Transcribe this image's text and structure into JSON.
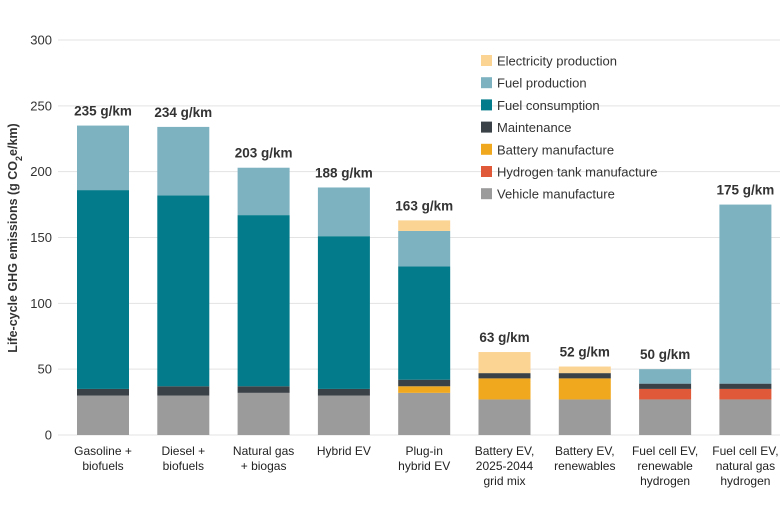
{
  "chart_data": {
    "type": "bar",
    "stacked": true,
    "ylabel_parts": [
      "Life-cycle GHG emissions (g CO",
      "2",
      "e/km)"
    ],
    "ylim": [
      0,
      300
    ],
    "yticks": [
      0,
      50,
      100,
      150,
      200,
      250,
      300
    ],
    "categories": [
      [
        "Gasoline +",
        "biofuels"
      ],
      [
        "Diesel +",
        "biofuels"
      ],
      [
        "Natural gas",
        "+ biogas"
      ],
      [
        "Hybrid EV"
      ],
      [
        "Plug-in",
        "hybrid EV"
      ],
      [
        "Battery EV,",
        "2025-2044",
        "grid mix"
      ],
      [
        "Battery EV,",
        "renewables"
      ],
      [
        "Fuel cell EV,",
        "renewable",
        "hydrogen"
      ],
      [
        "Fuel cell EV,",
        "natural gas",
        "hydrogen"
      ]
    ],
    "totals": [
      "235 g/km",
      "234 g/km",
      "203 g/km",
      "188 g/km",
      "163 g/km",
      "63 g/km",
      "52 g/km",
      "50 g/km",
      "175 g/km"
    ],
    "series": [
      {
        "name": "Vehicle manufacture",
        "color": "#9b9b9b",
        "values": [
          30,
          30,
          32,
          30,
          32,
          27,
          27,
          27,
          27
        ]
      },
      {
        "name": "Hydrogen tank manufacture",
        "color": "#e05a3a",
        "values": [
          0,
          0,
          0,
          0,
          0,
          0,
          0,
          8,
          8
        ]
      },
      {
        "name": "Battery manufacture",
        "color": "#f0a81e",
        "values": [
          0,
          0,
          0,
          0,
          5,
          16,
          16,
          0,
          0
        ]
      },
      {
        "name": "Maintenance",
        "color": "#3b4247",
        "values": [
          5,
          7,
          5,
          5,
          5,
          4,
          4,
          4,
          4
        ]
      },
      {
        "name": "Fuel consumption",
        "color": "#047b8a",
        "values": [
          151,
          145,
          130,
          116,
          86,
          0,
          0,
          0,
          0
        ]
      },
      {
        "name": "Fuel production",
        "color": "#7db2c1",
        "values": [
          49,
          52,
          36,
          37,
          27,
          0,
          0,
          11,
          136
        ]
      },
      {
        "name": "Electricity production",
        "color": "#fbd393",
        "values": [
          0,
          0,
          0,
          0,
          8,
          16,
          5,
          0,
          0
        ]
      }
    ],
    "legend_order": [
      "Electricity production",
      "Fuel production",
      "Fuel consumption",
      "Maintenance",
      "Battery manufacture",
      "Hydrogen tank manufacture",
      "Vehicle manufacture"
    ],
    "legend_position": "top-right"
  }
}
